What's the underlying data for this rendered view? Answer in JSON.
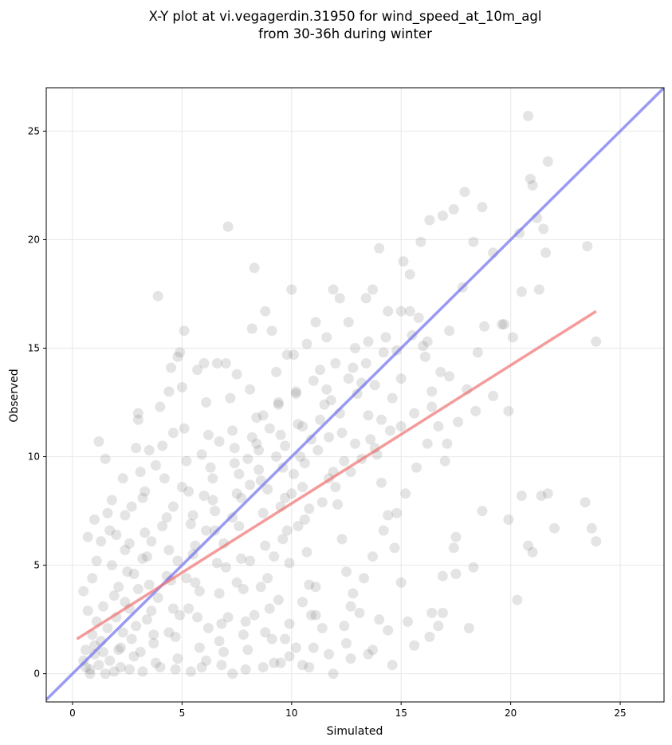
{
  "chart_data": {
    "type": "scatter",
    "title_line1": "X-Y plot at vi.vegagerdin.31950 for wind_speed_at_10m_agl",
    "title_line2": "from 30-36h during winter",
    "xlabel": "Simulated",
    "ylabel": "Observed",
    "xlim": [
      -1.2,
      27
    ],
    "ylim": [
      -1.3,
      27
    ],
    "xticks": [
      0,
      5,
      10,
      15,
      20,
      25
    ],
    "yticks": [
      0,
      5,
      10,
      15,
      20,
      25
    ],
    "grid": true,
    "point_color": "#606060",
    "identity_line": {
      "color": "#6f6ff0",
      "from": [
        -1.2,
        -1.2
      ],
      "to": [
        27,
        27
      ]
    },
    "fit_line": {
      "color": "#f07070",
      "from": [
        0.2,
        1.6
      ],
      "to": [
        23.9,
        16.7
      ]
    },
    "points": [
      [
        0.5,
        0.6
      ],
      [
        0.6,
        1.1
      ],
      [
        0.8,
        0.2
      ],
      [
        0.9,
        1.8
      ],
      [
        1.0,
        0.9
      ],
      [
        1.1,
        2.4
      ],
      [
        1.2,
        0.4
      ],
      [
        1.3,
        1.5
      ],
      [
        1.4,
        3.1
      ],
      [
        0.7,
        2.9
      ],
      [
        0.5,
        3.8
      ],
      [
        0.9,
        4.4
      ],
      [
        1.1,
        5.2
      ],
      [
        1.3,
        6.1
      ],
      [
        0.7,
        6.3
      ],
      [
        1.0,
        7.1
      ],
      [
        1.2,
        10.7
      ],
      [
        1.5,
        9.9
      ],
      [
        1.6,
        7.4
      ],
      [
        1.7,
        6.6
      ],
      [
        1.8,
        5.0
      ],
      [
        1.9,
        3.6
      ],
      [
        2.0,
        2.6
      ],
      [
        2.1,
        1.1
      ],
      [
        2.2,
        0.3
      ],
      [
        2.3,
        1.9
      ],
      [
        2.4,
        3.3
      ],
      [
        2.5,
        4.7
      ],
      [
        2.6,
        6.0
      ],
      [
        2.7,
        7.7
      ],
      [
        2.8,
        0.8
      ],
      [
        2.9,
        2.2
      ],
      [
        3.0,
        11.7
      ],
      [
        3.1,
        9.3
      ],
      [
        3.2,
        8.1
      ],
      [
        3.3,
        6.5
      ],
      [
        3.4,
        5.4
      ],
      [
        3.5,
        4.1
      ],
      [
        3.6,
        2.9
      ],
      [
        3.7,
        1.4
      ],
      [
        3.8,
        0.5
      ],
      [
        3.9,
        17.4
      ],
      [
        4.0,
        12.3
      ],
      [
        4.1,
        10.5
      ],
      [
        4.2,
        9.0
      ],
      [
        4.3,
        7.2
      ],
      [
        4.4,
        5.7
      ],
      [
        4.5,
        4.3
      ],
      [
        4.6,
        3.0
      ],
      [
        4.7,
        1.7
      ],
      [
        4.8,
        0.7
      ],
      [
        4.9,
        14.8
      ],
      [
        5.0,
        13.2
      ],
      [
        5.1,
        11.3
      ],
      [
        5.2,
        9.8
      ],
      [
        5.3,
        8.4
      ],
      [
        5.4,
        6.9
      ],
      [
        5.5,
        5.5
      ],
      [
        5.6,
        4.2
      ],
      [
        5.7,
        2.6
      ],
      [
        5.8,
        1.2
      ],
      [
        5.9,
        0.3
      ],
      [
        6.0,
        14.3
      ],
      [
        6.1,
        12.5
      ],
      [
        6.2,
        11.0
      ],
      [
        6.3,
        9.5
      ],
      [
        6.4,
        8.0
      ],
      [
        6.5,
        6.6
      ],
      [
        6.6,
        5.1
      ],
      [
        6.7,
        3.7
      ],
      [
        6.8,
        2.3
      ],
      [
        6.9,
        1.0
      ],
      [
        7.0,
        14.3
      ],
      [
        7.1,
        20.6
      ],
      [
        7.2,
        12.7
      ],
      [
        7.3,
        11.2
      ],
      [
        7.4,
        9.7
      ],
      [
        7.5,
        8.3
      ],
      [
        7.6,
        6.8
      ],
      [
        7.7,
        5.3
      ],
      [
        7.8,
        3.9
      ],
      [
        7.9,
        2.4
      ],
      [
        8.0,
        1.1
      ],
      [
        8.1,
        13.1
      ],
      [
        8.2,
        15.9
      ],
      [
        8.3,
        18.7
      ],
      [
        8.4,
        11.8
      ],
      [
        8.5,
        10.3
      ],
      [
        8.6,
        8.9
      ],
      [
        8.7,
        7.4
      ],
      [
        8.8,
        5.9
      ],
      [
        8.9,
        4.4
      ],
      [
        9.0,
        3.0
      ],
      [
        9.1,
        1.6
      ],
      [
        9.2,
        0.5
      ],
      [
        9.3,
        13.9
      ],
      [
        9.4,
        12.4
      ],
      [
        9.5,
        11.0
      ],
      [
        9.6,
        9.5
      ],
      [
        9.7,
        8.1
      ],
      [
        9.8,
        6.6
      ],
      [
        9.9,
        5.1
      ],
      [
        10.0,
        17.7
      ],
      [
        10.1,
        14.7
      ],
      [
        10.2,
        13.0
      ],
      [
        10.3,
        11.5
      ],
      [
        10.4,
        10.0
      ],
      [
        10.5,
        8.6
      ],
      [
        10.6,
        7.1
      ],
      [
        10.7,
        5.6
      ],
      [
        10.8,
        4.1
      ],
      [
        10.9,
        2.7
      ],
      [
        11.0,
        1.2
      ],
      [
        11.1,
        16.2
      ],
      [
        11.3,
        14.0
      ],
      [
        11.5,
        12.4
      ],
      [
        11.7,
        10.9
      ],
      [
        11.9,
        9.3
      ],
      [
        12.1,
        7.8
      ],
      [
        12.3,
        6.2
      ],
      [
        12.5,
        4.7
      ],
      [
        12.7,
        3.1
      ],
      [
        11.9,
        17.7
      ],
      [
        12.2,
        17.3
      ],
      [
        12.6,
        16.2
      ],
      [
        12.9,
        15.0
      ],
      [
        13.2,
        13.4
      ],
      [
        13.5,
        11.9
      ],
      [
        13.8,
        10.4
      ],
      [
        14.1,
        8.8
      ],
      [
        14.4,
        7.3
      ],
      [
        14.7,
        5.8
      ],
      [
        15.0,
        4.2
      ],
      [
        13.4,
        17.3
      ],
      [
        13.7,
        17.7
      ],
      [
        14.0,
        19.6
      ],
      [
        14.4,
        16.7
      ],
      [
        14.8,
        14.9
      ],
      [
        15.1,
        19.0
      ],
      [
        15.4,
        18.4
      ],
      [
        15.8,
        16.4
      ],
      [
        16.1,
        14.6
      ],
      [
        16.4,
        13.0
      ],
      [
        16.7,
        11.4
      ],
      [
        17.0,
        9.8
      ],
      [
        15.9,
        19.9
      ],
      [
        16.3,
        20.9
      ],
      [
        16.9,
        21.1
      ],
      [
        17.4,
        21.4
      ],
      [
        17.9,
        22.2
      ],
      [
        18.3,
        19.9
      ],
      [
        18.7,
        21.5
      ],
      [
        19.2,
        19.4
      ],
      [
        19.7,
        16.1
      ],
      [
        20.1,
        15.5
      ],
      [
        20.4,
        20.3
      ],
      [
        20.8,
        25.7
      ],
      [
        20.9,
        22.8
      ],
      [
        21.0,
        22.5
      ],
      [
        21.2,
        21.0
      ],
      [
        21.5,
        20.5
      ],
      [
        21.7,
        23.6
      ],
      [
        21.3,
        17.7
      ],
      [
        21.6,
        19.4
      ],
      [
        20.5,
        17.6
      ],
      [
        19.9,
        12.1
      ],
      [
        21.4,
        8.2
      ],
      [
        21.7,
        8.3
      ],
      [
        22.0,
        6.7
      ],
      [
        23.4,
        7.9
      ],
      [
        23.7,
        6.7
      ],
      [
        23.9,
        6.1
      ],
      [
        23.9,
        15.3
      ],
      [
        23.5,
        19.7
      ],
      [
        21.0,
        5.6
      ],
      [
        20.8,
        5.9
      ],
      [
        20.5,
        8.2
      ],
      [
        20.3,
        3.4
      ],
      [
        19.9,
        7.1
      ],
      [
        18.7,
        7.5
      ],
      [
        18.1,
        2.1
      ],
      [
        18.3,
        4.9
      ],
      [
        17.4,
        5.8
      ],
      [
        17.5,
        6.3
      ],
      [
        17.5,
        4.6
      ],
      [
        16.9,
        4.5
      ],
      [
        16.7,
        2.2
      ],
      [
        16.9,
        2.8
      ],
      [
        16.3,
        1.7
      ],
      [
        16.4,
        2.8
      ],
      [
        15.6,
        1.3
      ],
      [
        15.3,
        2.4
      ],
      [
        14.6,
        0.4
      ],
      [
        14.4,
        2.0
      ],
      [
        14.0,
        2.5
      ],
      [
        13.7,
        1.1
      ],
      [
        13.5,
        0.9
      ],
      [
        13.1,
        2.8
      ],
      [
        12.7,
        0.7
      ],
      [
        12.5,
        1.4
      ],
      [
        11.9,
        0.0
      ],
      [
        11.7,
        0.9
      ],
      [
        11.4,
        2.1
      ],
      [
        11.1,
        2.7
      ],
      [
        10.8,
        0.3
      ],
      [
        10.5,
        0.4
      ],
      [
        10.2,
        1.2
      ],
      [
        9.9,
        0.8
      ],
      [
        9.7,
        1.6
      ],
      [
        9.5,
        0.5
      ],
      [
        8.7,
        0.3
      ],
      [
        7.9,
        0.2
      ],
      [
        7.3,
        0.0
      ],
      [
        6.8,
        0.4
      ],
      [
        6.1,
        0.6
      ],
      [
        5.4,
        0.1
      ],
      [
        4.7,
        0.2
      ],
      [
        4.0,
        0.3
      ],
      [
        3.2,
        0.1
      ],
      [
        2.6,
        0.2
      ],
      [
        1.9,
        0.1
      ],
      [
        1.5,
        0.0
      ],
      [
        0.8,
        0.0
      ],
      [
        0.6,
        0.3
      ],
      [
        1.0,
        1.3
      ],
      [
        1.6,
        2.1
      ],
      [
        2.1,
        4.0
      ],
      [
        2.6,
        3.0
      ],
      [
        3.0,
        3.9
      ],
      [
        3.4,
        2.5
      ],
      [
        3.9,
        3.5
      ],
      [
        4.3,
        4.5
      ],
      [
        4.8,
        5.2
      ],
      [
        5.2,
        4.4
      ],
      [
        5.6,
        5.9
      ],
      [
        6.1,
        6.6
      ],
      [
        6.5,
        7.5
      ],
      [
        6.9,
        6.0
      ],
      [
        7.3,
        7.2
      ],
      [
        7.7,
        8.1
      ],
      [
        8.1,
        8.7
      ],
      [
        8.5,
        9.4
      ],
      [
        8.9,
        8.5
      ],
      [
        9.3,
        10.0
      ],
      [
        9.7,
        10.5
      ],
      [
        10.1,
        9.2
      ],
      [
        10.5,
        11.4
      ],
      [
        10.9,
        10.8
      ],
      [
        11.3,
        11.7
      ],
      [
        11.8,
        12.6
      ],
      [
        12.2,
        12.0
      ],
      [
        12.6,
        13.6
      ],
      [
        13.0,
        12.9
      ],
      [
        13.4,
        14.3
      ],
      [
        13.8,
        13.3
      ],
      [
        14.2,
        14.8
      ],
      [
        14.6,
        12.7
      ],
      [
        15.0,
        13.6
      ],
      [
        15.5,
        15.6
      ],
      [
        16.0,
        15.1
      ],
      [
        16.4,
        12.3
      ],
      [
        16.8,
        13.9
      ],
      [
        17.2,
        13.7
      ],
      [
        17.6,
        11.6
      ],
      [
        18.0,
        13.1
      ],
      [
        18.4,
        12.1
      ],
      [
        18.8,
        16.0
      ],
      [
        19.2,
        12.8
      ],
      [
        19.6,
        16.1
      ],
      [
        17.8,
        17.8
      ],
      [
        17.1,
        10.6
      ],
      [
        16.2,
        10.6
      ],
      [
        15.7,
        9.5
      ],
      [
        15.2,
        8.3
      ],
      [
        14.8,
        7.4
      ],
      [
        14.2,
        6.6
      ],
      [
        13.7,
        5.4
      ],
      [
        13.3,
        4.4
      ],
      [
        12.8,
        3.7
      ],
      [
        12.4,
        2.2
      ],
      [
        4.5,
        14.1
      ],
      [
        4.8,
        14.6
      ],
      [
        5.1,
        15.8
      ],
      [
        4.4,
        13.0
      ],
      [
        5.7,
        14.0
      ],
      [
        6.6,
        14.3
      ],
      [
        7.5,
        13.8
      ],
      [
        9.1,
        15.8
      ],
      [
        8.8,
        16.7
      ],
      [
        9.8,
        14.7
      ],
      [
        10.7,
        15.2
      ],
      [
        11.6,
        15.5
      ],
      [
        12.0,
        14.3
      ],
      [
        13.5,
        15.3
      ],
      [
        14.3,
        15.5
      ],
      [
        15.0,
        16.7
      ],
      [
        15.4,
        16.7
      ],
      [
        16.2,
        15.3
      ],
      [
        17.2,
        15.8
      ],
      [
        18.5,
        14.8
      ],
      [
        3.3,
        8.4
      ],
      [
        2.3,
        9.0
      ],
      [
        3.8,
        9.6
      ],
      [
        4.6,
        11.1
      ],
      [
        3.0,
        12.0
      ],
      [
        2.9,
        10.4
      ],
      [
        3.5,
        10.3
      ],
      [
        1.8,
        8.0
      ],
      [
        2.4,
        7.3
      ],
      [
        2.0,
        6.4
      ],
      [
        5.9,
        10.1
      ],
      [
        6.7,
        10.7
      ],
      [
        7.4,
        10.4
      ],
      [
        8.2,
        10.9
      ],
      [
        8.7,
        11.9
      ],
      [
        9.4,
        12.5
      ],
      [
        10.2,
        12.9
      ],
      [
        11.0,
        13.5
      ],
      [
        11.6,
        13.1
      ],
      [
        12.8,
        14.1
      ],
      [
        6.2,
        2.1
      ],
      [
        6.7,
        1.5
      ],
      [
        7.1,
        2.6
      ],
      [
        7.8,
        1.8
      ],
      [
        8.3,
        2.7
      ],
      [
        8.8,
        1.9
      ],
      [
        9.4,
        3.4
      ],
      [
        9.9,
        2.3
      ],
      [
        10.5,
        3.3
      ],
      [
        11.1,
        4.0
      ],
      [
        5.3,
        3.0
      ],
      [
        5.8,
        3.8
      ],
      [
        4.9,
        2.7
      ],
      [
        4.4,
        1.9
      ],
      [
        3.7,
        1.8
      ],
      [
        3.1,
        1.0
      ],
      [
        2.7,
        1.6
      ],
      [
        2.2,
        1.2
      ],
      [
        1.7,
        0.6
      ],
      [
        1.4,
        1.0
      ],
      [
        7.0,
        4.9
      ],
      [
        7.5,
        4.2
      ],
      [
        8.1,
        5.2
      ],
      [
        8.6,
        4.0
      ],
      [
        9.2,
        5.4
      ],
      [
        9.6,
        6.2
      ],
      [
        10.3,
        6.8
      ],
      [
        10.8,
        7.6
      ],
      [
        11.4,
        7.9
      ],
      [
        12.0,
        8.6
      ],
      [
        12.7,
        9.3
      ],
      [
        13.2,
        9.9
      ],
      [
        13.9,
        10.1
      ],
      [
        14.5,
        11.2
      ],
      [
        15.0,
        11.4
      ],
      [
        15.6,
        12.0
      ],
      [
        14.1,
        11.7
      ],
      [
        13.6,
        10.8
      ],
      [
        12.9,
        10.6
      ],
      [
        12.3,
        11.1
      ],
      [
        5.5,
        7.3
      ],
      [
        6.0,
        8.2
      ],
      [
        6.4,
        9.0
      ],
      [
        5.0,
        8.6
      ],
      [
        4.6,
        7.7
      ],
      [
        4.1,
        6.8
      ],
      [
        3.6,
        6.1
      ],
      [
        3.2,
        5.3
      ],
      [
        2.8,
        4.6
      ],
      [
        2.4,
        5.7
      ],
      [
        7.6,
        9.2
      ],
      [
        8.0,
        9.9
      ],
      [
        8.4,
        10.6
      ],
      [
        9.0,
        11.3
      ],
      [
        9.5,
        7.7
      ],
      [
        10.0,
        8.3
      ],
      [
        10.6,
        9.7
      ],
      [
        11.2,
        10.3
      ],
      [
        11.7,
        9.0
      ],
      [
        12.4,
        9.8
      ]
    ]
  }
}
